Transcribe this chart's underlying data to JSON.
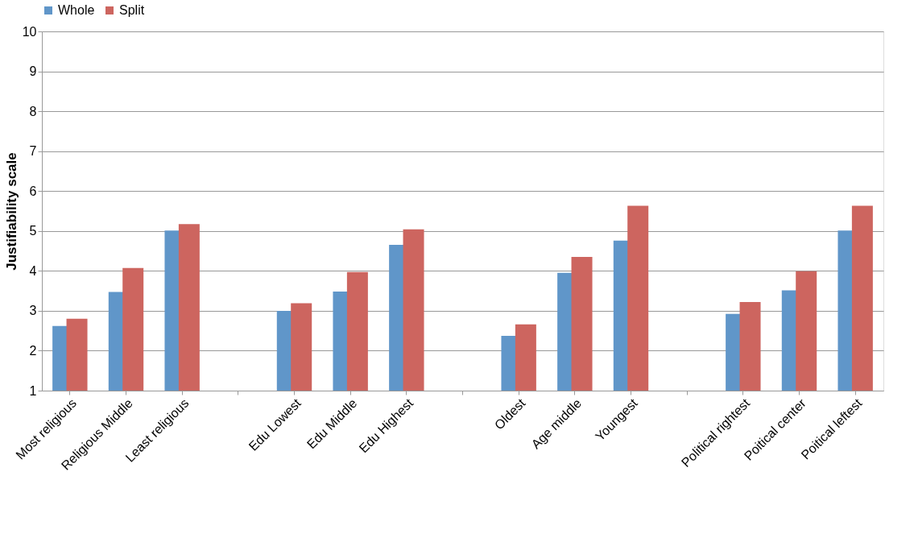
{
  "chart_data": {
    "type": "bar",
    "ylabel": "Justifiability scale",
    "categories": [
      "Most religious",
      "Religious Middle",
      "Least religious",
      null,
      "Edu Lowest",
      "Edu Middle",
      "Edu Highest",
      null,
      "Oldest",
      "Age middle",
      "Youngest",
      null,
      "Political rightest",
      "Poitical center",
      "Poitical leftest"
    ],
    "series": [
      {
        "name": "Whole",
        "color": "#6096c9",
        "values": [
          2.62,
          3.47,
          5.01,
          null,
          3.0,
          3.48,
          4.65,
          null,
          2.37,
          3.95,
          4.76,
          null,
          2.92,
          3.51,
          5.01
        ]
      },
      {
        "name": "Split",
        "color": "#cd655f",
        "values": [
          2.8,
          4.07,
          5.17,
          null,
          3.19,
          3.97,
          5.04,
          null,
          2.66,
          4.35,
          5.63,
          null,
          3.22,
          3.99,
          5.63
        ]
      }
    ],
    "ylim": [
      1,
      10
    ],
    "yticks": [
      1,
      2,
      3,
      4,
      5,
      6,
      7,
      8,
      9,
      10
    ],
    "grid": "y",
    "legend": "top"
  }
}
